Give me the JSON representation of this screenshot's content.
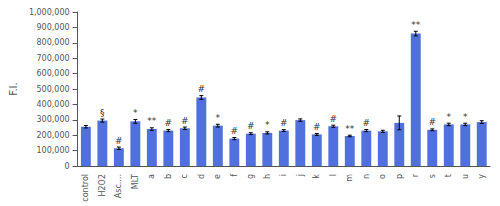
{
  "chart_data": {
    "type": "bar",
    "categories": [
      "control",
      "H2O2",
      "Asc....",
      "MLT",
      "a",
      "b",
      "c",
      "d",
      "e",
      "f",
      "g",
      "h",
      "i",
      "j",
      "k",
      "l",
      "m",
      "n",
      "o",
      "p",
      "r",
      "s",
      "t",
      "u",
      "y"
    ],
    "values": [
      255000,
      295000,
      115000,
      290000,
      240000,
      230000,
      245000,
      445000,
      262000,
      178000,
      210000,
      215000,
      230000,
      298000,
      205000,
      258000,
      195000,
      230000,
      225000,
      280000,
      860000,
      235000,
      270000,
      270000,
      285000
    ],
    "errors": [
      8000,
      10000,
      8000,
      12000,
      8000,
      7000,
      8000,
      12000,
      9000,
      7000,
      6000,
      7000,
      6000,
      8000,
      6000,
      7000,
      5000,
      7000,
      7000,
      45000,
      15000,
      6000,
      8000,
      8000,
      9000
    ],
    "annotations": [
      {
        "category": "H2O2",
        "text": "§"
      },
      {
        "category": "Asc....",
        "text": "#"
      },
      {
        "category": "MLT",
        "text": "*"
      },
      {
        "category": "a",
        "text": "**"
      },
      {
        "category": "b",
        "text": "#"
      },
      {
        "category": "c",
        "text": "#"
      },
      {
        "category": "d",
        "text": "#"
      },
      {
        "category": "e",
        "text": "*"
      },
      {
        "category": "f",
        "text": "#"
      },
      {
        "category": "g",
        "text": "#"
      },
      {
        "category": "h",
        "text": "*"
      },
      {
        "category": "i",
        "text": "#"
      },
      {
        "category": "k",
        "text": "#"
      },
      {
        "category": "l",
        "text": "#"
      },
      {
        "category": "m",
        "text": "**"
      },
      {
        "category": "n",
        "text": "#"
      },
      {
        "category": "r",
        "text": "**"
      },
      {
        "category": "s",
        "text": "#"
      },
      {
        "category": "t",
        "text": "*"
      },
      {
        "category": "u",
        "text": "*"
      }
    ],
    "ylabel": "F.I.",
    "ylim": [
      0,
      1000000
    ],
    "yticks": [
      0,
      100000,
      200000,
      300000,
      400000,
      500000,
      600000,
      700000,
      800000,
      900000,
      1000000
    ],
    "grid": false
  }
}
